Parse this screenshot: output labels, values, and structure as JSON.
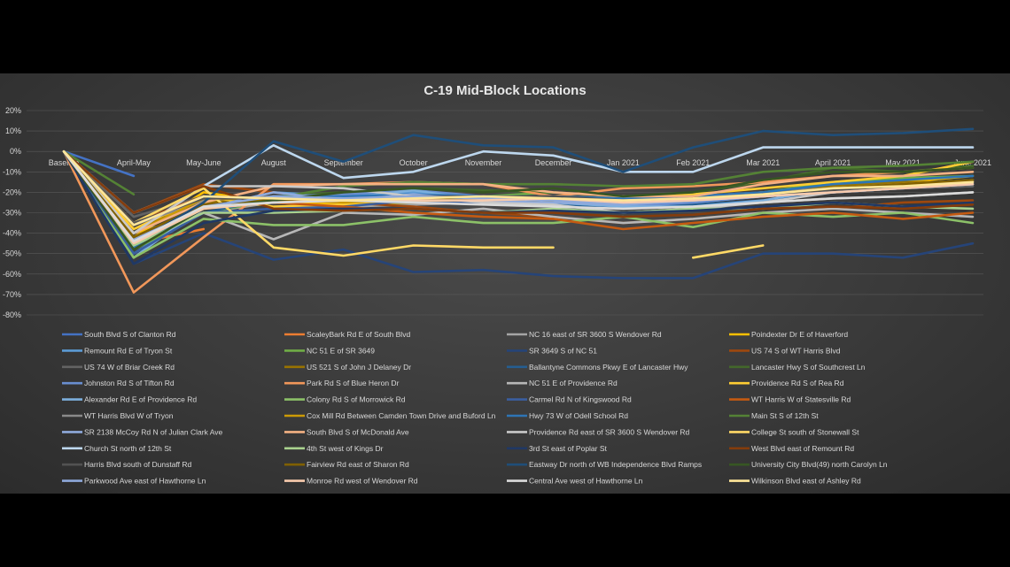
{
  "chart_data": {
    "type": "line",
    "title": "C-19 Mid-Block Locations",
    "xlabel": "",
    "ylabel": "",
    "ylim": [
      -80,
      20
    ],
    "y_ticks": [
      "20%",
      "10%",
      "0%",
      "-10%",
      "-20%",
      "-30%",
      "-40%",
      "-50%",
      "-60%",
      "-70%",
      "-80%"
    ],
    "categories": [
      "Baseline",
      "April-May",
      "May-June",
      "August",
      "September",
      "October",
      "November",
      "December",
      "Jan 2021",
      "Feb 2021",
      "Mar 2021",
      "April 2021",
      "May 2021",
      "June 2021"
    ],
    "grid": true,
    "legend_position": "bottom",
    "series": [
      {
        "name": "South Blvd S of Clanton Rd",
        "color": "#4472c4",
        "values": [
          0,
          -12,
          null,
          null,
          null,
          null,
          null,
          null,
          null,
          null,
          null,
          null,
          null,
          null
        ]
      },
      {
        "name": "ScaleyBark Rd E of South Blvd",
        "color": "#ed7d31",
        "values": [
          0,
          -45,
          -38,
          null,
          null,
          null,
          null,
          null,
          null,
          null,
          null,
          null,
          null,
          null
        ]
      },
      {
        "name": "NC 16 east of SR 3600 S Wendover Rd",
        "color": "#a5a5a5",
        "values": [
          0,
          -40,
          -30,
          -25,
          -27,
          -26,
          -25,
          -24,
          -26,
          -27,
          -25,
          -23,
          -22,
          -20
        ]
      },
      {
        "name": "Poindexter Dr E of Haverford",
        "color": "#ffc000",
        "values": [
          0,
          -42,
          -20,
          -25,
          -26,
          -25,
          -24,
          -24,
          -25,
          -23,
          -20,
          -17,
          -15,
          -12
        ]
      },
      {
        "name": "Remount Rd E of Tryon St",
        "color": "#5b9bd5",
        "values": [
          0,
          -50,
          -28,
          -20,
          -22,
          -20,
          -24,
          -25,
          -27,
          -25,
          -22,
          -20,
          -18,
          -17
        ]
      },
      {
        "name": "NC 51 E of SR 3649",
        "color": "#70ad47",
        "values": [
          0,
          -48,
          -30,
          -24,
          -24,
          -22,
          -22,
          -20,
          -22,
          -23,
          -20,
          -15,
          -13,
          -12
        ]
      },
      {
        "name": "SR 3649 S of NC 51",
        "color": "#264478",
        "values": [
          0,
          -55,
          -40,
          -53,
          -48,
          -59,
          -58,
          -61,
          -62,
          -62,
          -50,
          -50,
          -52,
          -45
        ]
      },
      {
        "name": "US 74 S of WT Harris Blvd",
        "color": "#9e480e",
        "values": [
          0,
          -30,
          -16,
          -20,
          -25,
          -27,
          -30,
          -32,
          -35,
          -33,
          -30,
          -28,
          -25,
          -24
        ]
      },
      {
        "name": "US 74 W of Briar Creek Rd",
        "color": "#636363",
        "values": [
          0,
          -32,
          -22,
          -23,
          -23,
          -23,
          -23,
          -23,
          -23,
          -23,
          -22,
          -20,
          -18,
          -17
        ]
      },
      {
        "name": "US 521 S of John J Delaney Dr",
        "color": "#997300",
        "values": [
          0,
          -38,
          -25,
          -22,
          -24,
          -22,
          -23,
          -24,
          -26,
          -24,
          -20,
          -17,
          -15,
          -15
        ]
      },
      {
        "name": "Ballantyne Commons Pkwy E of Lancaster Hwy",
        "color": "#255e91",
        "values": [
          0,
          -50,
          -30,
          -23,
          -25,
          -25,
          -24,
          -26,
          -28,
          -26,
          -24,
          -20,
          -18,
          -16
        ]
      },
      {
        "name": "Lancaster Hwy S of Southcrest Ln",
        "color": "#43682b",
        "values": [
          0,
          -45,
          -28,
          -22,
          -20,
          -18,
          -19,
          -20,
          -22,
          -20,
          -15,
          -8,
          -10,
          -7
        ]
      },
      {
        "name": "Johnston Rd S of Tifton Rd",
        "color": "#698ed0",
        "values": [
          0,
          -46,
          -28,
          -22,
          -21,
          -19,
          -22,
          -25,
          -27,
          -25,
          -22,
          -20,
          -18,
          -16
        ]
      },
      {
        "name": "Park Rd S of Blue Heron Dr",
        "color": "#f1975a",
        "values": [
          0,
          -69,
          -42,
          -16,
          -16,
          -15,
          -16,
          -22,
          -18,
          -17,
          -15,
          -12,
          -10,
          -8
        ]
      },
      {
        "name": "NC 51 E of Providence Rd",
        "color": "#b7b7b7",
        "values": [
          0,
          -45,
          -30,
          -43,
          -30,
          -31,
          -28,
          -32,
          -35,
          -33,
          -30,
          -28,
          -30,
          -32
        ]
      },
      {
        "name": "Providence Rd S of Rea Rd",
        "color": "#ffcd33",
        "values": [
          0,
          -38,
          -22,
          -27,
          -26,
          -23,
          -25,
          -22,
          -23,
          -21,
          -18,
          -15,
          -12,
          -5
        ]
      },
      {
        "name": "Alexander Rd E of Providence Rd",
        "color": "#7cafdd",
        "values": [
          0,
          -52,
          -27,
          -22,
          -23,
          -19,
          -24,
          -25,
          -27,
          -27,
          -24,
          -18,
          -16,
          -14
        ]
      },
      {
        "name": "Colony Rd S of Morrowick Rd",
        "color": "#8cc168",
        "values": [
          0,
          -52,
          -33,
          -36,
          -36,
          -32,
          -35,
          -35,
          -32,
          -37,
          -30,
          -32,
          -30,
          -35
        ]
      },
      {
        "name": "Carmel Rd N of Kingswood Rd",
        "color": "#3a5fa0",
        "values": [
          0,
          -50,
          -30,
          -28,
          -27,
          -24,
          -25,
          -23,
          -24,
          -23,
          -22,
          -20,
          -18,
          -15
        ]
      },
      {
        "name": "WT Harris W of Statesville Rd",
        "color": "#c55a11",
        "values": [
          0,
          -35,
          -22,
          -25,
          -27,
          -30,
          -32,
          -33,
          -38,
          -35,
          -32,
          -30,
          -33,
          -30
        ]
      },
      {
        "name": "WT Harris Blvd W of Tryon",
        "color": "#8a8a8a",
        "values": [
          0,
          -36,
          -24,
          -22,
          -22,
          -22,
          -24,
          -24,
          -24,
          -22,
          -20,
          -18,
          -17,
          -15
        ]
      },
      {
        "name": "Cox Mill Rd Between Camden Town Drive and Buford Ln",
        "color": "#cc9a06",
        "values": [
          0,
          -40,
          -23,
          -24,
          -25,
          -24,
          -24,
          -24,
          -25,
          -24,
          -21,
          -18,
          -16,
          -14
        ]
      },
      {
        "name": "Hwy 73 W of Odell School Rd",
        "color": "#2e75b6",
        "values": [
          0,
          -47,
          -27,
          -22,
          -22,
          -21,
          -22,
          -22,
          -23,
          -22,
          -20,
          -16,
          -14,
          -12
        ]
      },
      {
        "name": "Main St S of 12th St",
        "color": "#548235",
        "values": [
          0,
          -21,
          null,
          -23,
          -17,
          -15,
          -16,
          -16,
          -17,
          -16,
          -10,
          -8,
          -7,
          -5
        ]
      },
      {
        "name": "SR 2138 McCoy Rd N of Julian Clark Ave",
        "color": "#8faadc",
        "values": [
          0,
          -43,
          -28,
          -20,
          -24,
          -21,
          -24,
          -25,
          -26,
          -24,
          -22,
          -19,
          -17,
          -16
        ]
      },
      {
        "name": "South Blvd S of McDonald Ave",
        "color": "#f4b183",
        "values": [
          0,
          -40,
          -25,
          -17,
          -16,
          -16,
          -16,
          -20,
          -22,
          -22,
          -16,
          -12,
          -12,
          -10
        ]
      },
      {
        "name": "Providence Rd east of SR 3600 S Wendover Rd",
        "color": "#c9c9c9",
        "values": [
          0,
          -40,
          -17,
          -17,
          -18,
          -22,
          -25,
          -26,
          -30,
          -28,
          -25,
          -20,
          -17,
          -15
        ]
      },
      {
        "name": "College St south of Stonewall St",
        "color": "#ffd966",
        "values": [
          0,
          -35,
          -18,
          -47,
          -51,
          -46,
          -47,
          -47,
          null,
          -52,
          -46,
          null,
          null,
          null
        ]
      },
      {
        "name": "Church St north of 12th St",
        "color": "#bdd7ee",
        "values": [
          0,
          -30,
          -17,
          3,
          -13,
          -10,
          0,
          -2,
          -10,
          -10,
          2,
          2,
          2,
          2
        ]
      },
      {
        "name": "4th St west of Kings Dr",
        "color": "#a9d18e",
        "values": [
          0,
          -46,
          -30,
          -30,
          -29,
          -28,
          -30,
          -28,
          -30,
          -28,
          -28,
          -25,
          -27,
          -28
        ]
      },
      {
        "name": "3rd St east of Poplar St",
        "color": "#203864",
        "values": [
          0,
          -55,
          -35,
          -29,
          -28,
          -28,
          -30,
          -29,
          -30,
          -29,
          -27,
          -25,
          -27,
          -25
        ]
      },
      {
        "name": "West Blvd east of Remount Rd",
        "color": "#843c0c",
        "values": [
          0,
          -30,
          -17,
          -28,
          -29,
          -28,
          -30,
          -30,
          -32,
          -31,
          -28,
          -27,
          -28,
          -26
        ]
      },
      {
        "name": "Harris Blvd south of Dunstaff Rd",
        "color": "#525252",
        "values": [
          0,
          -35,
          -23,
          -23,
          -23,
          -22,
          -22,
          -22,
          -24,
          -23,
          -21,
          -19,
          -17,
          -15
        ]
      },
      {
        "name": "Fairview Rd east of Sharon Rd",
        "color": "#806000",
        "values": [
          0,
          -42,
          -26,
          -24,
          -24,
          -23,
          -23,
          -24,
          -25,
          -23,
          -21,
          -18,
          -16,
          -14
        ]
      },
      {
        "name": "Eastway Dr north of WB Independence Blvd Ramps",
        "color": "#1f4e79",
        "values": [
          0,
          -45,
          -25,
          5,
          -5,
          8,
          3,
          2,
          -10,
          2,
          10,
          8,
          9,
          11
        ]
      },
      {
        "name": "University City Blvd(49) north Carolyn Ln",
        "color": "#375623",
        "values": [
          0,
          -48,
          -28,
          -24,
          -20,
          -18,
          -20,
          -18,
          -22,
          -20,
          -14,
          -10,
          -10,
          -8
        ]
      },
      {
        "name": "Parkwood Ave east of Hawthorne Ln",
        "color": "#8ea9db",
        "values": [
          0,
          -44,
          -27,
          -22,
          -23,
          -22,
          -23,
          -24,
          -26,
          -24,
          -22,
          -20,
          -18,
          -16
        ]
      },
      {
        "name": "Monroe Rd west of Wendover Rd",
        "color": "#f8cbad",
        "values": [
          0,
          -45,
          -28,
          -25,
          -24,
          -24,
          -24,
          -23,
          -25,
          -24,
          -22,
          -20,
          -18,
          -16
        ]
      },
      {
        "name": "Central Ave west of Hawthorne Ln",
        "color": "#dbdbdb",
        "values": [
          0,
          -44,
          -27,
          -25,
          -24,
          -25,
          -26,
          -27,
          -28,
          -27,
          -25,
          -23,
          -22,
          -20
        ]
      },
      {
        "name": "Wilkinson Blvd east of Ashley Rd",
        "color": "#ffe699",
        "values": [
          0,
          -36,
          -22,
          -23,
          -24,
          -23,
          -22,
          -23,
          -24,
          -23,
          -21,
          -18,
          -17,
          -15
        ]
      }
    ]
  }
}
